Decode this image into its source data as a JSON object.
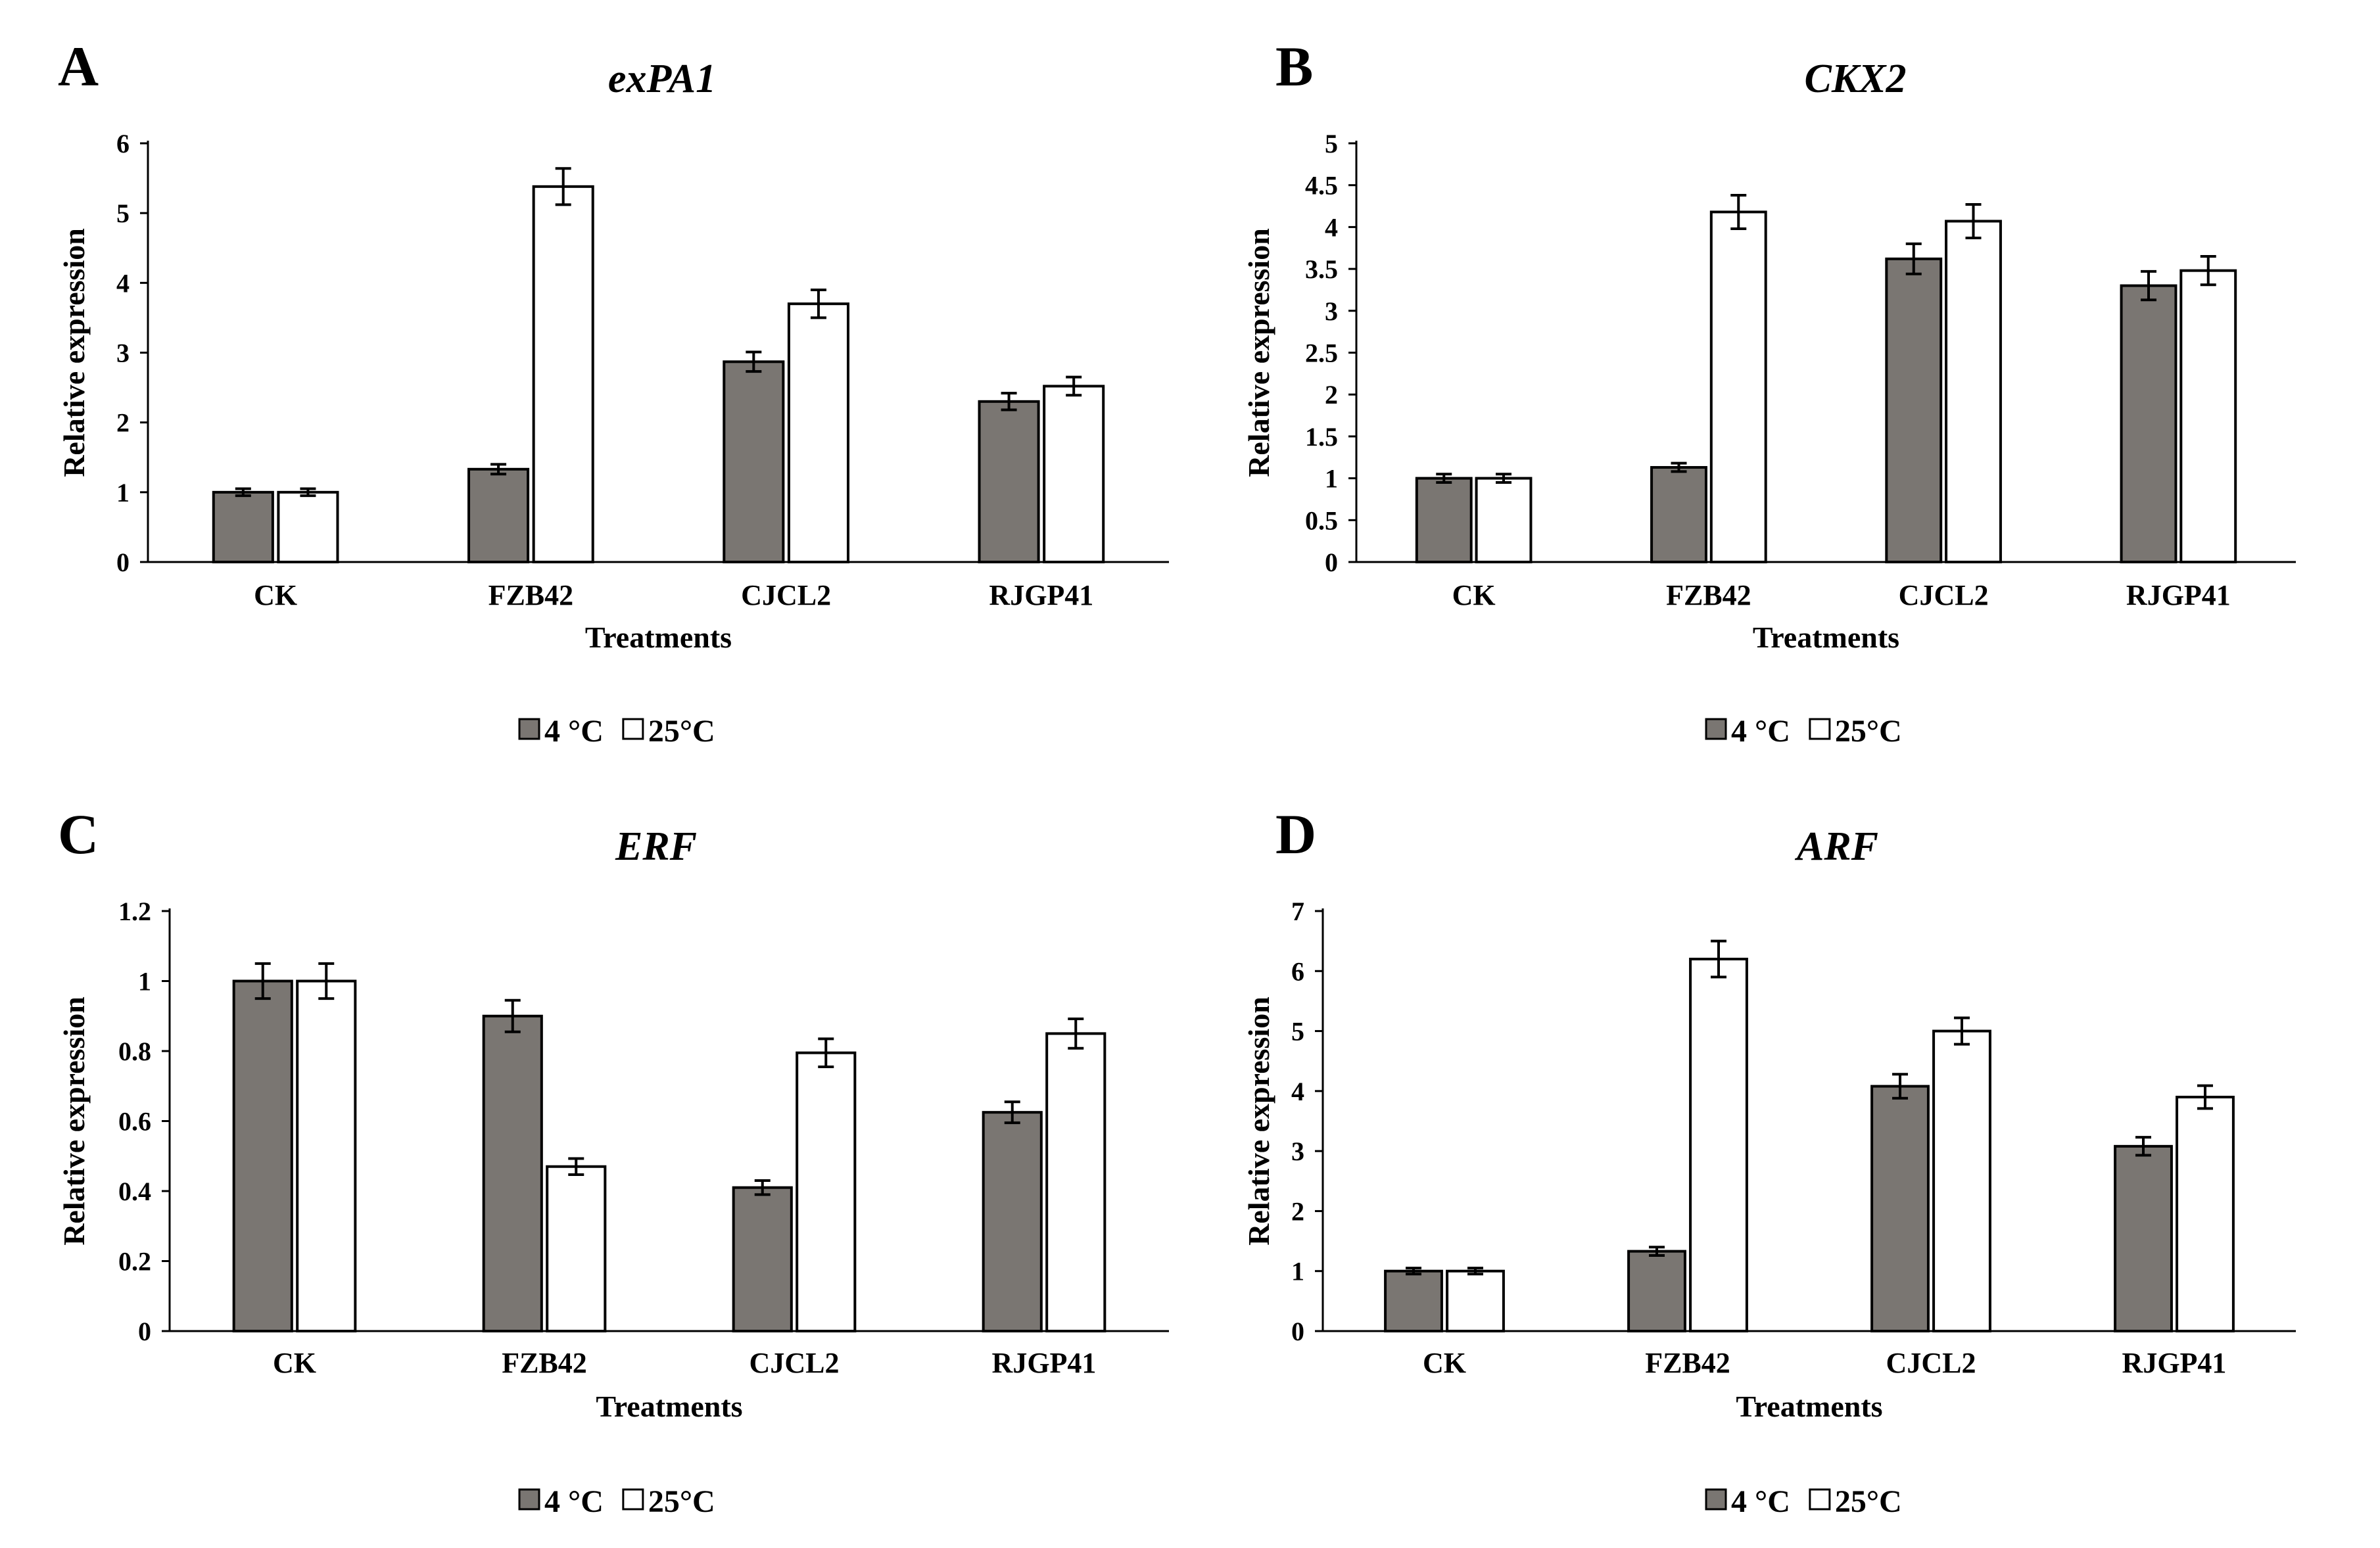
{
  "colors": {
    "series_4C": "#7a7672",
    "series_25C": "#ffffff",
    "stroke": "#000000"
  },
  "chart_data": [
    {
      "panel": "A",
      "type": "bar",
      "title": "exPA1",
      "xlabel": "Treatments",
      "ylabel": "Relative expression",
      "categories": [
        "CK",
        "FZB42",
        "CJCL2",
        "RJGP41"
      ],
      "ylim": [
        0,
        6
      ],
      "yticks": [
        "0",
        "1",
        "2",
        "3",
        "4",
        "5",
        "6"
      ],
      "series": [
        {
          "name": "4 °C",
          "values": [
            1.0,
            1.33,
            2.87,
            2.3
          ],
          "errors": [
            0.05,
            0.07,
            0.14,
            0.12
          ]
        },
        {
          "name": "25°C",
          "values": [
            1.0,
            5.38,
            3.7,
            2.52
          ],
          "errors": [
            0.05,
            0.26,
            0.2,
            0.13
          ]
        }
      ],
      "legend": "bottom"
    },
    {
      "panel": "B",
      "type": "bar",
      "title": "CKX2",
      "xlabel": "Treatments",
      "ylabel": "Relative expression",
      "categories": [
        "CK",
        "FZB42",
        "CJCL2",
        "RJGP41"
      ],
      "ylim": [
        0,
        5
      ],
      "yticks": [
        "0",
        "0.5",
        "1",
        "1.5",
        "2",
        "2.5",
        "3",
        "3.5",
        "4",
        "4.5",
        "5"
      ],
      "series": [
        {
          "name": "4 °C",
          "values": [
            1.0,
            1.13,
            3.62,
            3.3
          ],
          "errors": [
            0.05,
            0.05,
            0.18,
            0.17
          ]
        },
        {
          "name": "25°C",
          "values": [
            1.0,
            4.18,
            4.07,
            3.48
          ],
          "errors": [
            0.05,
            0.2,
            0.2,
            0.17
          ]
        }
      ],
      "legend": "bottom"
    },
    {
      "panel": "C",
      "type": "bar",
      "title": "ERF",
      "xlabel": "Treatments",
      "ylabel": "Relative expression",
      "categories": [
        "CK",
        "FZB42",
        "CJCL2",
        "RJGP41"
      ],
      "ylim": [
        0,
        1.2
      ],
      "yticks": [
        "0",
        "0.2",
        "0.4",
        "0.6",
        "0.8",
        "1",
        "1.2"
      ],
      "series": [
        {
          "name": "4 °C",
          "values": [
            1.0,
            0.9,
            0.41,
            0.625
          ],
          "errors": [
            0.05,
            0.045,
            0.02,
            0.03
          ]
        },
        {
          "name": "25°C",
          "values": [
            1.0,
            0.47,
            0.795,
            0.85
          ],
          "errors": [
            0.05,
            0.023,
            0.04,
            0.042
          ]
        }
      ],
      "legend": "bottom"
    },
    {
      "panel": "D",
      "type": "bar",
      "title": "ARF",
      "xlabel": "Treatments",
      "ylabel": "Relative expression",
      "categories": [
        "CK",
        "FZB42",
        "CJCL2",
        "RJGP41"
      ],
      "ylim": [
        0,
        7
      ],
      "yticks": [
        "0",
        "1",
        "2",
        "3",
        "4",
        "5",
        "6",
        "7"
      ],
      "series": [
        {
          "name": "4 °C",
          "values": [
            1.0,
            1.33,
            4.08,
            3.08
          ],
          "errors": [
            0.05,
            0.07,
            0.2,
            0.15
          ]
        },
        {
          "name": "25°C",
          "values": [
            1.0,
            6.2,
            5.0,
            3.9
          ],
          "errors": [
            0.05,
            0.3,
            0.22,
            0.19
          ]
        }
      ],
      "legend": "bottom"
    }
  ]
}
